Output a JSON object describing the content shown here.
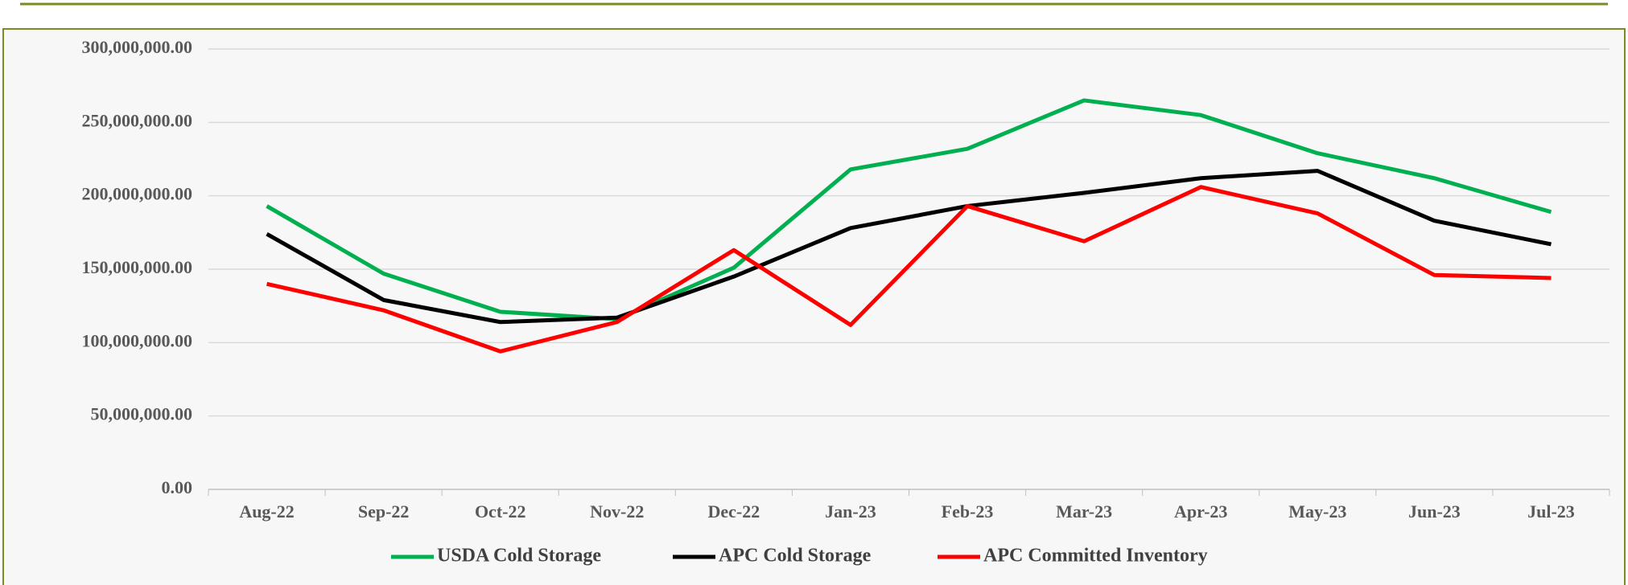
{
  "chart_data": {
    "type": "line",
    "categories": [
      "Aug-22",
      "Sep-22",
      "Oct-22",
      "Nov-22",
      "Dec-22",
      "Jan-23",
      "Feb-23",
      "Mar-23",
      "Apr-23",
      "May-23",
      "Jun-23",
      "Jul-23"
    ],
    "series": [
      {
        "name": "USDA Cold Storage",
        "color": "#00b050",
        "values": [
          193000000,
          147000000,
          121000000,
          116000000,
          151000000,
          218000000,
          232000000,
          265000000,
          255000000,
          229000000,
          212000000,
          189000000
        ]
      },
      {
        "name": "APC Cold Storage",
        "color": "#000000",
        "values": [
          174000000,
          129000000,
          114000000,
          117000000,
          145000000,
          178000000,
          193000000,
          202000000,
          212000000,
          217000000,
          183000000,
          167000000
        ]
      },
      {
        "name": "APC Committed Inventory",
        "color": "#ff0000",
        "values": [
          140000000,
          122000000,
          94000000,
          114000000,
          163000000,
          112000000,
          193000000,
          169000000,
          206000000,
          188000000,
          146000000,
          144000000
        ]
      }
    ],
    "ylim": [
      0,
      300000000
    ],
    "yticks": [
      {
        "value": 0,
        "label": "0.00"
      },
      {
        "value": 50000000,
        "label": "50,000,000.00"
      },
      {
        "value": 100000000,
        "label": "100,000,000.00"
      },
      {
        "value": 150000000,
        "label": "150,000,000.00"
      },
      {
        "value": 200000000,
        "label": "200,000,000.00"
      },
      {
        "value": 250000000,
        "label": "250,000,000.00"
      },
      {
        "value": 300000000,
        "label": "300,000,000.00"
      }
    ],
    "grid": true,
    "legend": "bottom"
  }
}
